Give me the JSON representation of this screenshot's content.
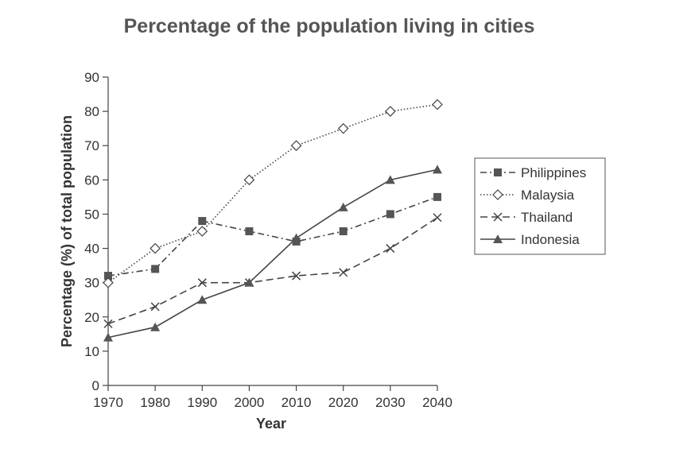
{
  "chart_data": {
    "type": "line",
    "title": "Percentage of the population living in cities",
    "xlabel": "Year",
    "ylabel": "Percentage (%) of total population",
    "x": [
      1970,
      1980,
      1990,
      2000,
      2010,
      2020,
      2030,
      2040
    ],
    "ylim": [
      0,
      90
    ],
    "yticks": [
      0,
      10,
      20,
      30,
      40,
      50,
      60,
      70,
      80,
      90
    ],
    "grid": false,
    "legend_position": "right",
    "series": [
      {
        "name": "Philippines",
        "marker": "square",
        "line": "dash-dot",
        "color": "#444444",
        "values": [
          32,
          34,
          48,
          45,
          42,
          45,
          50,
          55
        ]
      },
      {
        "name": "Malaysia",
        "marker": "diamond",
        "line": "dotted",
        "color": "#444444",
        "values": [
          30,
          40,
          45,
          60,
          70,
          75,
          80,
          82
        ]
      },
      {
        "name": "Thailand",
        "marker": "x",
        "line": "dashed",
        "color": "#444444",
        "values": [
          18,
          23,
          30,
          30,
          32,
          33,
          40,
          49
        ]
      },
      {
        "name": "Indonesia",
        "marker": "triangle",
        "line": "solid",
        "color": "#444444",
        "values": [
          14,
          17,
          25,
          30,
          43,
          52,
          60,
          63
        ]
      }
    ]
  }
}
